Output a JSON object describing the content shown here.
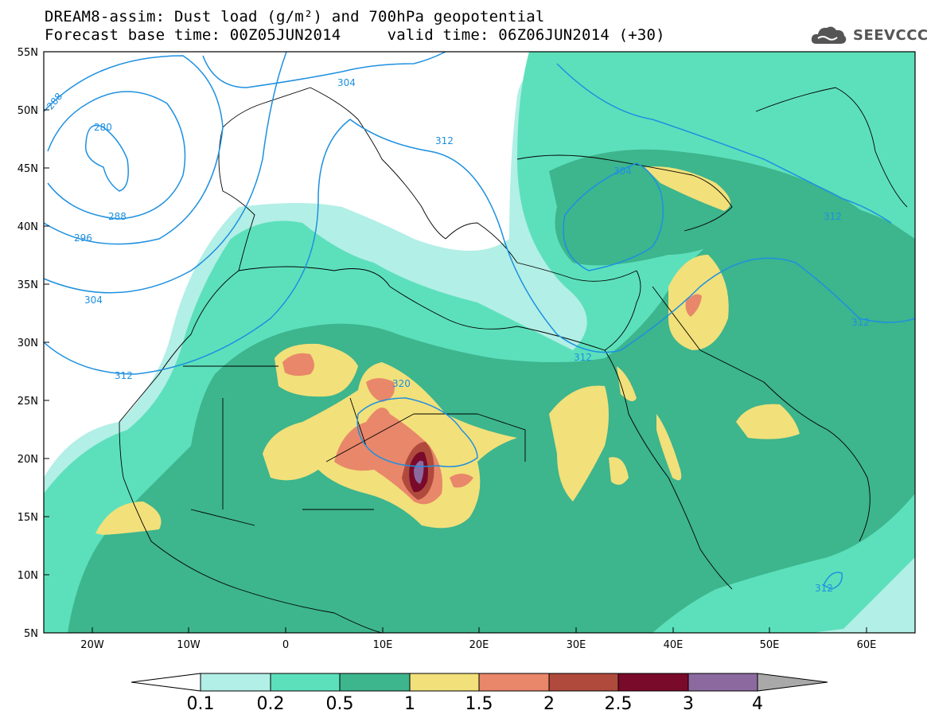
{
  "header": {
    "title_line1": "DREAM8-assim: Dust load (g/m²) and 700hPa geopotential",
    "title_line2": "Forecast base time: 00Z05JUN2014     valid time: 06Z06JUN2014 (+30)",
    "logo_text": "SEEVCCC",
    "logo_icon": "cloud-logo-icon"
  },
  "map": {
    "lon_range": [
      -25,
      65
    ],
    "lat_range": [
      5,
      55
    ],
    "lat_labels": [
      "55N",
      "50N",
      "45N",
      "40N",
      "35N",
      "30N",
      "25N",
      "20N",
      "15N",
      "10N",
      "5N"
    ],
    "lon_labels": [
      "20W",
      "10W",
      "0",
      "10E",
      "20E",
      "30E",
      "40E",
      "50E",
      "60E"
    ],
    "contour_color": "#1e90e0",
    "contour_labels": [
      "288",
      "280",
      "288",
      "296",
      "304",
      "312",
      "304",
      "312",
      "304",
      "312",
      "320",
      "312",
      "312",
      "312"
    ]
  },
  "colorbar": {
    "labels": [
      "0.1",
      "0.2",
      "0.5",
      "1",
      "1.5",
      "2",
      "2.5",
      "3",
      "4"
    ],
    "colors": [
      "#b2efe6",
      "#5ce0bb",
      "#3db58d",
      "#f2e07a",
      "#e8876a",
      "#b04a3c",
      "#7a0a2a",
      "#8c6aa0",
      "#a9a9a9"
    ]
  }
}
